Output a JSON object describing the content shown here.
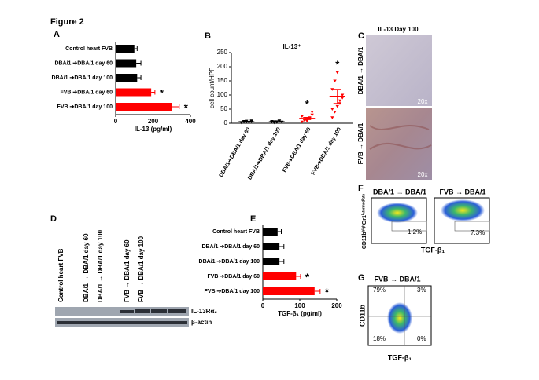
{
  "figure_title": "Figure 2",
  "panel_labels": [
    "A",
    "B",
    "C",
    "D",
    "E",
    "F",
    "G"
  ],
  "chart_data": [
    {
      "type": "bar",
      "orientation": "horizontal",
      "categories": [
        "Control heart FVB",
        "DBA/1 ➔DBA/1 day 60",
        "DBA/1 ➔DBA/1 day 100",
        "FVB ➔DBA/1 day 60",
        "FVB ➔DBA/1 day 100"
      ],
      "values": [
        100,
        110,
        115,
        190,
        300
      ],
      "errors": [
        15,
        25,
        20,
        20,
        40
      ],
      "colors": [
        "#000000",
        "#000000",
        "#000000",
        "#ff0000",
        "#ff0000"
      ],
      "x_label": "IL-13 (pg/ml)",
      "xlim": [
        0,
        400
      ],
      "xticks": [
        0,
        200,
        400
      ],
      "annotations": [
        {
          "text": "*",
          "at": "FVB ➔DBA/1 day 60"
        },
        {
          "text": "*",
          "at": "FVB ➔DBA/1 day 100"
        }
      ]
    },
    {
      "type": "dot",
      "title": "IL-13⁺",
      "y_label": "cell count/HPF",
      "categories": [
        "DBA/1➔DBA/1 day 60",
        "DBA/1➔DBA/1 day 100",
        "FVB➔DBA/1 day 60",
        "FVB➔DBA/1 day 100"
      ],
      "points": [
        [
          3,
          5,
          8,
          4,
          6,
          2,
          7,
          5,
          4,
          9
        ],
        [
          4,
          6,
          3,
          8,
          5,
          7,
          2,
          6,
          9,
          4
        ],
        [
          5,
          10,
          15,
          20,
          30,
          25,
          12,
          8,
          18,
          40
        ],
        [
          20,
          40,
          60,
          80,
          100,
          120,
          150,
          180,
          70,
          90,
          50
        ]
      ],
      "means": [
        5,
        5,
        17,
        95
      ],
      "errors": [
        1,
        1,
        4,
        25
      ],
      "colors": [
        "#000000",
        "#000000",
        "#ff0000",
        "#ff0000"
      ],
      "ylim": [
        0,
        250
      ],
      "yticks": [
        0,
        50,
        100,
        150,
        200,
        250
      ],
      "annotations": [
        {
          "text": "*",
          "at": "FVB➔DBA/1 day 60"
        },
        {
          "text": "*",
          "at": "FVB➔DBA/1 day 100"
        }
      ]
    },
    {
      "type": "bar",
      "orientation": "horizontal",
      "categories": [
        "Control heart FVB",
        "DBA/1 ➔DBA/1 day 60",
        "DBA/1 ➔DBA/1 day 100",
        "FVB ➔DBA/1 day 60",
        "FVB ➔DBA/1 day 100"
      ],
      "values": [
        40,
        45,
        45,
        90,
        140
      ],
      "errors": [
        10,
        12,
        12,
        12,
        15
      ],
      "colors": [
        "#000000",
        "#000000",
        "#000000",
        "#ff0000",
        "#ff0000"
      ],
      "x_label": "TGF-β₁ (pg/ml)",
      "xlim": [
        0,
        200
      ],
      "xticks": [
        0,
        100,
        200
      ],
      "annotations": [
        {
          "text": "*",
          "at": "FVB ➔DBA/1 day 60"
        },
        {
          "text": "*",
          "at": "FVB ➔DBA/1 day 100"
        }
      ]
    }
  ],
  "images": {
    "C": {
      "title": "IL-13 Day 100",
      "rows": [
        "DBA/1 → DBA/1",
        "FVB → DBA/1"
      ],
      "magnification": [
        "20x",
        "20x"
      ]
    },
    "D": {
      "columns": [
        "Control heart FVB",
        "DBA/1 → DBA/1 day 60",
        "DBA/1 → DBA/1 day 100",
        "FVB → DBA/1 day 60",
        "FVB → DBA/1 day 100"
      ],
      "bands": [
        "IL-13Rα₂",
        "β-actin"
      ]
    },
    "F": {
      "titles": [
        "DBA/1 → DBA/1",
        "FVB → DBA/1"
      ],
      "percentages": [
        "1.2%",
        "7.3%"
      ],
      "y_label": "CD11bʰⁱᵍʰGr1ⁱⁿᵗᵉʳᵐᵉᵈⁱᵃᵗᵉ",
      "x_label": "TGF-β₁"
    },
    "G": {
      "title": "FVB → DBA/1",
      "quadrants": [
        "79%",
        "3%",
        "18%",
        "0%"
      ],
      "y_label": "CD11b",
      "x_label": "TGF-β₁"
    }
  }
}
